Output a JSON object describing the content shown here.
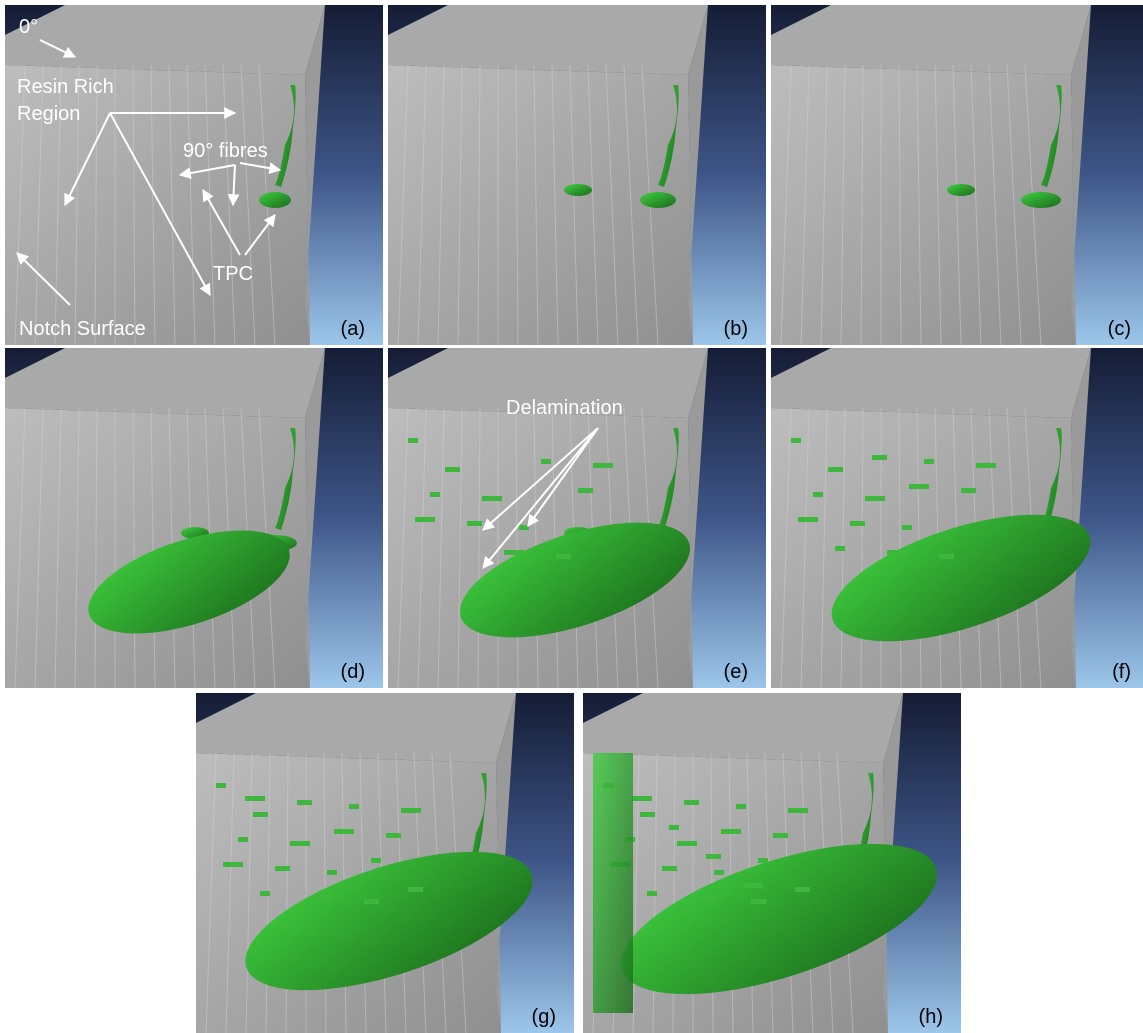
{
  "panels": [
    {
      "label": "(a)",
      "annotations": {
        "zero": "0°",
        "resin": [
          "Resin Rich",
          "Region"
        ],
        "fibres": "90° fibres",
        "tpc": "TPC",
        "notch": "Notch Surface"
      }
    },
    {
      "label": "(b)"
    },
    {
      "label": "(c)"
    },
    {
      "label": "(d)"
    },
    {
      "label": "(e)",
      "annotations": {
        "delamination": "Delamination"
      }
    },
    {
      "label": "(f)"
    },
    {
      "label": "(g)"
    },
    {
      "label": "(h)"
    }
  ]
}
